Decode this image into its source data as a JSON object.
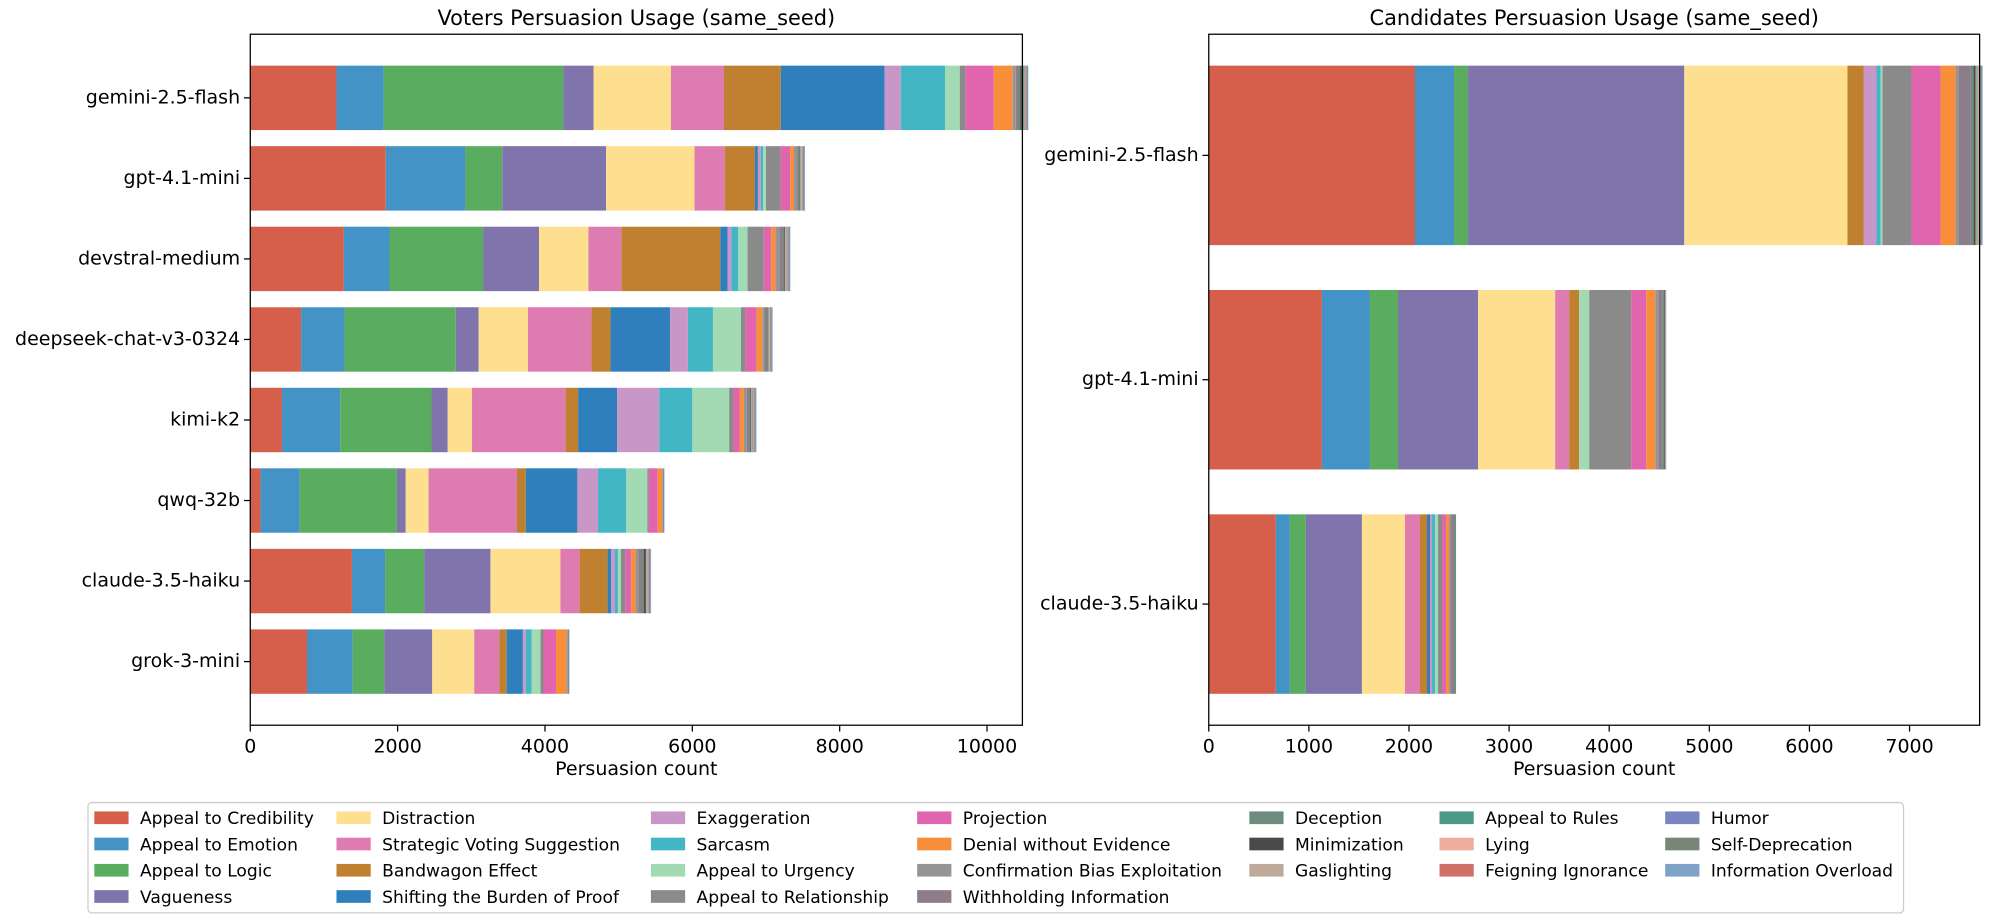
{
  "chart_data": [
    {
      "type": "barh_stacked",
      "title": "Voters Persuasion Usage (same_seed)",
      "xlabel": "Persuasion count",
      "categories": [
        "gemini-2.5-flash",
        "gpt-4.1-mini",
        "devstral-medium",
        "deepseek-chat-v3-0324",
        "kimi-k2",
        "qwq-32b",
        "claude-3.5-haiku",
        "grok-3-mini"
      ],
      "xlim": [
        0,
        10480
      ],
      "xticks": [
        0,
        2000,
        4000,
        6000,
        8000,
        10000
      ],
      "series": [
        {
          "name": "Appeal to Credibility",
          "color": "#d65f4c",
          "values": [
            1170,
            1840,
            1270,
            690,
            430,
            140,
            1380,
            770
          ]
        },
        {
          "name": "Appeal to Emotion",
          "color": "#4393c7",
          "values": [
            640,
            1080,
            620,
            590,
            790,
            530,
            450,
            620
          ]
        },
        {
          "name": "Appeal to Logic",
          "color": "#5aad5e",
          "values": [
            2440,
            500,
            1270,
            1510,
            1240,
            1320,
            530,
            430
          ]
        },
        {
          "name": "Vagueness",
          "color": "#8074ad",
          "values": [
            410,
            1410,
            760,
            310,
            220,
            120,
            900,
            650
          ]
        },
        {
          "name": "Distraction",
          "color": "#fedf8f",
          "values": [
            1050,
            1200,
            670,
            670,
            330,
            310,
            950,
            570
          ]
        },
        {
          "name": "Strategic Voting Suggestion",
          "color": "#de7bb0",
          "values": [
            720,
            410,
            450,
            860,
            1270,
            1200,
            260,
            340
          ]
        },
        {
          "name": "Bandwagon Effect",
          "color": "#bf8030",
          "values": [
            770,
            410,
            1340,
            260,
            170,
            120,
            380,
            100
          ]
        },
        {
          "name": "Shifting the Burden of Proof",
          "color": "#2f7fbc",
          "values": [
            1410,
            40,
            100,
            810,
            530,
            700,
            50,
            220
          ]
        },
        {
          "name": "Exaggeration",
          "color": "#c996c8",
          "values": [
            220,
            40,
            50,
            240,
            570,
            280,
            50,
            40
          ]
        },
        {
          "name": "Sarcasm",
          "color": "#42b6c4",
          "values": [
            600,
            30,
            90,
            340,
            450,
            380,
            40,
            80
          ]
        },
        {
          "name": "Appeal to Urgency",
          "color": "#a2dab4",
          "values": [
            200,
            40,
            130,
            380,
            500,
            290,
            40,
            120
          ]
        },
        {
          "name": "Appeal to Relationship",
          "color": "#8a8a8a",
          "values": [
            80,
            200,
            220,
            60,
            60,
            20,
            60,
            40
          ]
        },
        {
          "name": "Projection",
          "color": "#e064ae",
          "values": [
            380,
            130,
            100,
            150,
            80,
            120,
            80,
            170
          ]
        },
        {
          "name": "Denial without Evidence",
          "color": "#f98e3a",
          "values": [
            260,
            50,
            60,
            80,
            60,
            60,
            60,
            140
          ]
        },
        {
          "name": "Confirmation Bias Exploitation",
          "color": "#959595",
          "values": [
            40,
            30,
            60,
            30,
            40,
            10,
            40,
            20
          ]
        },
        {
          "name": "Withholding Information",
          "color": "#8d7c8a",
          "values": [
            30,
            20,
            40,
            20,
            30,
            10,
            40,
            10
          ]
        },
        {
          "name": "Deception",
          "color": "#6e8c7e",
          "values": [
            30,
            20,
            20,
            10,
            20,
            10,
            30,
            10
          ]
        },
        {
          "name": "Minimization",
          "color": "#4a4a4a",
          "values": [
            20,
            10,
            10,
            10,
            10,
            0,
            30,
            0
          ]
        },
        {
          "name": "Gaslighting",
          "color": "#bfa99a",
          "values": [
            20,
            10,
            10,
            10,
            10,
            0,
            10,
            0
          ]
        },
        {
          "name": "Appeal to Rules",
          "color": "#4a9a8a",
          "values": [
            20,
            10,
            10,
            10,
            10,
            0,
            10,
            0
          ]
        },
        {
          "name": "Lying",
          "color": "#efae9c",
          "values": [
            10,
            10,
            10,
            10,
            10,
            0,
            10,
            0
          ]
        },
        {
          "name": "Feigning Ignorance",
          "color": "#d0706a",
          "values": [
            10,
            10,
            10,
            10,
            10,
            0,
            10,
            0
          ]
        },
        {
          "name": "Humor",
          "color": "#7985c0",
          "values": [
            10,
            10,
            10,
            10,
            10,
            0,
            10,
            0
          ]
        },
        {
          "name": "Self-Deprecation",
          "color": "#778676",
          "values": [
            10,
            10,
            10,
            10,
            10,
            0,
            10,
            0
          ]
        },
        {
          "name": "Information Overload",
          "color": "#7fa3c8",
          "values": [
            10,
            10,
            10,
            10,
            10,
            0,
            10,
            0
          ]
        }
      ]
    },
    {
      "type": "barh_stacked",
      "title": "Candidates Persuasion Usage (same_seed)",
      "xlabel": "Persuasion count",
      "categories": [
        "gemini-2.5-flash",
        "gpt-4.1-mini",
        "claude-3.5-haiku"
      ],
      "xlim": [
        0,
        7700
      ],
      "xticks": [
        0,
        1000,
        2000,
        3000,
        4000,
        5000,
        6000,
        7000
      ],
      "series": [
        {
          "values": [
            2060,
            1130,
            670
          ]
        },
        {
          "values": [
            390,
            480,
            140
          ]
        },
        {
          "values": [
            140,
            280,
            160
          ]
        },
        {
          "values": [
            2160,
            800,
            560
          ]
        },
        {
          "values": [
            1630,
            770,
            430
          ]
        },
        {
          "values": [
            0,
            140,
            150
          ]
        },
        {
          "values": [
            160,
            100,
            70
          ]
        },
        {
          "values": [
            0,
            0,
            30
          ]
        },
        {
          "values": [
            130,
            0,
            20
          ]
        },
        {
          "values": [
            40,
            0,
            30
          ]
        },
        {
          "values": [
            20,
            100,
            30
          ]
        },
        {
          "values": [
            290,
            420,
            40
          ]
        },
        {
          "values": [
            290,
            150,
            40
          ]
        },
        {
          "values": [
            150,
            90,
            30
          ]
        },
        {
          "values": [
            30,
            30,
            20
          ]
        },
        {
          "values": [
            120,
            40,
            30
          ]
        },
        {
          "values": [
            30,
            20,
            20
          ]
        },
        {
          "values": [
            20,
            10,
            0
          ]
        },
        {
          "values": [
            10,
            10,
            0
          ]
        },
        {
          "values": [
            10,
            0,
            0
          ]
        },
        {
          "values": [
            10,
            0,
            0
          ]
        },
        {
          "values": [
            10,
            0,
            0
          ]
        },
        {
          "values": [
            10,
            0,
            0
          ]
        },
        {
          "values": [
            10,
            0,
            0
          ]
        },
        {
          "values": [
            10,
            0,
            0
          ]
        }
      ]
    }
  ]
}
